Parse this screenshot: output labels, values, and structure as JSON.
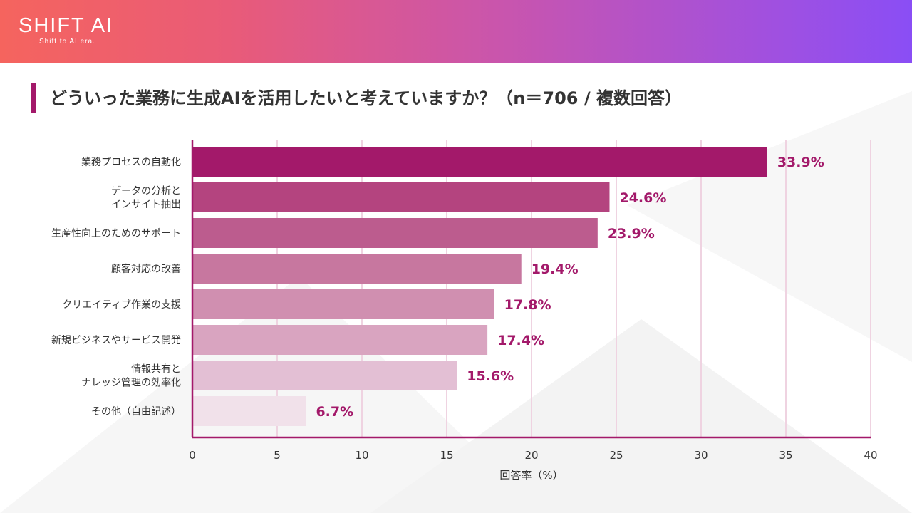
{
  "logo": {
    "name": "SHIFT AI",
    "tagline": "Shift to AI era."
  },
  "title": "どういった業務に生成AIを活用したいと考えていますか？（n＝706 / 複数回答）",
  "chart_data": {
    "type": "bar",
    "orientation": "horizontal",
    "categories": [
      [
        "業務プロセスの自動化"
      ],
      [
        "データの分析と",
        "インサイト抽出"
      ],
      [
        "生産性向上のためのサポート"
      ],
      [
        "顧客対応の改善"
      ],
      [
        "クリエイティブ作業の支援"
      ],
      [
        "新規ビジネスやサービス開発"
      ],
      [
        "情報共有と",
        "ナレッジ管理の効率化"
      ],
      [
        "その他（自由記述）"
      ]
    ],
    "values": [
      33.9,
      24.6,
      23.9,
      19.4,
      17.8,
      17.4,
      15.6,
      6.7
    ],
    "value_labels": [
      "33.9%",
      "24.6%",
      "23.9%",
      "19.4%",
      "17.8%",
      "17.4%",
      "15.6%",
      "6.7%"
    ],
    "bar_colors": [
      "#a3196a",
      "#b4447f",
      "#bc5c8e",
      "#c7779f",
      "#d08fb0",
      "#d9a4c0",
      "#e3bfd4",
      "#f1e1ea"
    ],
    "label_color": "#a3196a",
    "xlabel": "回答率（%）",
    "xlim": [
      0,
      40
    ],
    "xticks": [
      0,
      5,
      10,
      15,
      20,
      25,
      30,
      35,
      40
    ],
    "grid": true
  }
}
